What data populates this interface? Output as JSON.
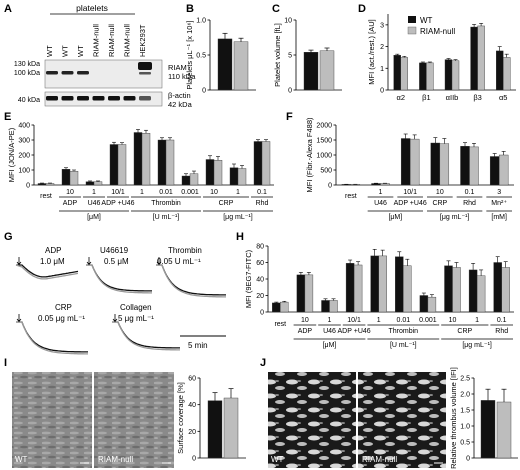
{
  "colors": {
    "wt": "#111111",
    "riam": "#bdbdbd",
    "blot_bg": "#ececec"
  },
  "panels": {
    "A": {
      "letter": "A",
      "group_label": "platelets",
      "lanes": [
        "WT",
        "WT",
        "WT",
        "RIAM-null",
        "RIAM-null",
        "RIAM-null",
        "HEK293T"
      ],
      "markers": [
        "130 kDa",
        "100 kDa",
        "40 kDa"
      ],
      "bands": [
        {
          "name": "RIAM",
          "size": "110 kDa"
        },
        {
          "name": "β-actin",
          "size": "42 kDa"
        }
      ]
    },
    "B": {
      "letter": "B",
      "ylabel": "Platelets μL⁻¹ [x 10⁶]",
      "yticks": [
        "0",
        "0.5",
        "1.0"
      ]
    },
    "C": {
      "letter": "C",
      "ylabel": "Platelet volume [fL]",
      "yticks": [
        "0",
        "5",
        "10"
      ]
    },
    "D": {
      "letter": "D",
      "ylabel": "MFI (act./rest.) [AU]",
      "yticks": [
        "0",
        "1",
        "2",
        "3"
      ],
      "legend": [
        "WT",
        "RIAM-null"
      ],
      "categories": [
        "α2",
        "β1",
        "αIIb",
        "β3",
        "α5"
      ]
    },
    "E": {
      "letter": "E",
      "ylabel": "MFI (JON/A-PE)",
      "yticks": [
        "0",
        "100",
        "200",
        "300",
        "400"
      ],
      "categories": [
        "rest",
        "ADP",
        "U46",
        "ADP\n+U46",
        "Thrombin",
        "Thrombin",
        "Thrombin",
        "CRP",
        "CRP",
        "Rhd"
      ],
      "doses": [
        "",
        "10",
        "1",
        "10/1",
        "1",
        "0.01",
        "0.001",
        "10",
        "1",
        "0.1"
      ],
      "groups": [
        {
          "label": "ADP",
          "unit": ""
        },
        {
          "label": "U46",
          "unit": "[μM]"
        },
        {
          "label": "ADP +U46",
          "unit": ""
        },
        {
          "label": "Thrombin",
          "unit": "[U mL⁻¹]"
        },
        {
          "label": "CRP",
          "unit": "[μg mL⁻¹]"
        },
        {
          "label": "Rhd",
          "unit": ""
        }
      ]
    },
    "F": {
      "letter": "F",
      "ylabel": "MFI (Fibr.-Alexa F488)",
      "yticks": [
        "0",
        "500",
        "1000",
        "1500",
        "2000"
      ],
      "categories": [
        "rest",
        "U46",
        "ADP +U46",
        "CRP",
        "Rhd",
        "Mn²⁺"
      ],
      "doses": [
        "",
        "1",
        "10/1",
        "10",
        "0.1",
        "3"
      ],
      "units": [
        "[μM]",
        "[μg mL⁻¹]",
        "[mM]"
      ]
    },
    "G": {
      "letter": "G",
      "traces": [
        {
          "agonist": "ADP",
          "dose": "1.0 μM"
        },
        {
          "agonist": "U46619",
          "dose": "0.5 μM"
        },
        {
          "agonist": "Thrombin",
          "dose": "0.05 U mL⁻¹"
        },
        {
          "agonist": "CRP",
          "dose": "0.05 μg mL⁻¹"
        },
        {
          "agonist": "Collagen",
          "dose": "5 μg mL⁻¹"
        }
      ],
      "scale": "5 min"
    },
    "H": {
      "letter": "H",
      "ylabel": "MFI (9EG7-FITC)",
      "yticks": [
        "0",
        "20",
        "40",
        "60",
        "80"
      ],
      "categories": [
        "rest",
        "ADP",
        "U46",
        "ADP +U46",
        "Thrombin",
        "Thrombin",
        "Thrombin",
        "CRP",
        "CRP",
        "Rhd"
      ],
      "doses": [
        "",
        "10",
        "1",
        "10/1",
        "1",
        "0.01",
        "0.001",
        "10",
        "1",
        "0.1"
      ],
      "groups": [
        {
          "label": "ADP"
        },
        {
          "label": "U46",
          "unit": "[μM]"
        },
        {
          "label": "ADP +U46"
        },
        {
          "label": "Thrombin",
          "unit": "[U mL⁻¹]"
        },
        {
          "label": "CRP",
          "unit": "[μg mL⁻¹]"
        },
        {
          "label": "Rhd"
        }
      ]
    },
    "I": {
      "letter": "I",
      "ylabel": "Surface coverage [%]",
      "yticks": [
        "0",
        "20",
        "40",
        "60"
      ],
      "image_labels": [
        "WT",
        "RIAM-null"
      ]
    },
    "J": {
      "letter": "J",
      "ylabel": "Relative thrombus volume [IFI]",
      "yticks": [
        "0",
        "0.5",
        "1.0",
        "1.5",
        "2.0",
        "2.5"
      ],
      "image_labels": [
        "WT",
        "RIAM-null"
      ]
    }
  },
  "chart_data": [
    {
      "panel": "B",
      "type": "bar",
      "categories": [
        "WT",
        "RIAM-null"
      ],
      "values": [
        0.73,
        0.69
      ],
      "errors": [
        0.08,
        0.05
      ],
      "ylim": [
        0,
        1.0
      ],
      "ylabel": "Platelets μL⁻¹ [x 10⁶]"
    },
    {
      "panel": "C",
      "type": "bar",
      "categories": [
        "WT",
        "RIAM-null"
      ],
      "values": [
        5.4,
        5.6
      ],
      "errors": [
        0.3,
        0.4
      ],
      "ylim": [
        0,
        10
      ],
      "ylabel": "Platelet volume [fL]"
    },
    {
      "panel": "D",
      "type": "bar",
      "categories": [
        "α2",
        "β1",
        "αIIb",
        "β3",
        "α5"
      ],
      "ylim": [
        0,
        3.5
      ],
      "ylabel": "MFI (act./rest.) [AU]",
      "series": [
        {
          "name": "WT",
          "values": [
            1.6,
            1.25,
            1.4,
            2.9,
            1.8
          ],
          "errors": [
            0.05,
            0.04,
            0.05,
            0.12,
            0.2
          ]
        },
        {
          "name": "RIAM-null",
          "values": [
            1.5,
            1.25,
            1.35,
            2.95,
            1.5
          ],
          "errors": [
            0.05,
            0.04,
            0.05,
            0.12,
            0.15
          ]
        }
      ]
    },
    {
      "panel": "E",
      "type": "bar",
      "categories": [
        "rest",
        "ADP 10",
        "U46 1",
        "ADP+U46 10/1",
        "Thrombin 1",
        "Thrombin 0.01",
        "Thrombin 0.001",
        "CRP 10",
        "CRP 1",
        "Rhd 0.1"
      ],
      "ylim": [
        0,
        400
      ],
      "ylabel": "MFI (JON/A-PE)",
      "series": [
        {
          "name": "WT",
          "values": [
            10,
            105,
            22,
            270,
            350,
            300,
            60,
            170,
            115,
            290
          ],
          "errors": [
            3,
            10,
            5,
            15,
            20,
            15,
            15,
            25,
            25,
            12
          ]
        },
        {
          "name": "RIAM-null",
          "values": [
            10,
            92,
            22,
            270,
            345,
            300,
            75,
            165,
            110,
            290
          ],
          "errors": [
            3,
            8,
            5,
            12,
            20,
            15,
            18,
            25,
            20,
            12
          ]
        }
      ]
    },
    {
      "panel": "F",
      "type": "bar",
      "categories": [
        "rest",
        "U46 1",
        "ADP+U46 10/1",
        "CRP 10",
        "Rhd 0.1",
        "Mn²⁺ 3"
      ],
      "ylim": [
        0,
        2000
      ],
      "ylabel": "MFI (Fibr.-Alexa F488)",
      "series": [
        {
          "name": "WT",
          "values": [
            20,
            50,
            1550,
            1400,
            1290,
            950
          ],
          "errors": [
            5,
            10,
            150,
            180,
            120,
            100
          ]
        },
        {
          "name": "RIAM-null",
          "values": [
            20,
            50,
            1530,
            1380,
            1270,
            1000
          ],
          "errors": [
            5,
            10,
            140,
            170,
            120,
            120
          ]
        }
      ]
    },
    {
      "panel": "H",
      "type": "bar",
      "categories": [
        "rest",
        "ADP 10",
        "U46 1",
        "ADP+U46 10/1",
        "Thrombin 1",
        "Thrombin 0.01",
        "Thrombin 0.001",
        "CRP 10",
        "CRP 1",
        "Rhd 0.1"
      ],
      "ylim": [
        0,
        80
      ],
      "ylabel": "MFI (9EG7-FITC)",
      "series": [
        {
          "name": "WT",
          "values": [
            11,
            45,
            14,
            59,
            68,
            67,
            20,
            56,
            51,
            60
          ],
          "errors": [
            1,
            3,
            2,
            4,
            8,
            6,
            3,
            6,
            8,
            7
          ]
        },
        {
          "name": "RIAM-null",
          "values": [
            12,
            45,
            14,
            57,
            68,
            56,
            18,
            54,
            44,
            54
          ],
          "errors": [
            1,
            3,
            2,
            4,
            7,
            8,
            3,
            6,
            7,
            7
          ]
        }
      ]
    },
    {
      "panel": "I",
      "type": "bar",
      "categories": [
        "WT",
        "RIAM-null"
      ],
      "values": [
        43,
        45
      ],
      "errors": [
        6,
        7
      ],
      "ylim": [
        0,
        60
      ],
      "ylabel": "Surface coverage [%]"
    },
    {
      "panel": "J",
      "type": "bar",
      "categories": [
        "WT",
        "RIAM-null"
      ],
      "values": [
        1.8,
        1.75
      ],
      "errors": [
        0.35,
        0.4
      ],
      "ylim": [
        0,
        2.5
      ],
      "ylabel": "Relative thrombus volume [IFI]"
    }
  ]
}
